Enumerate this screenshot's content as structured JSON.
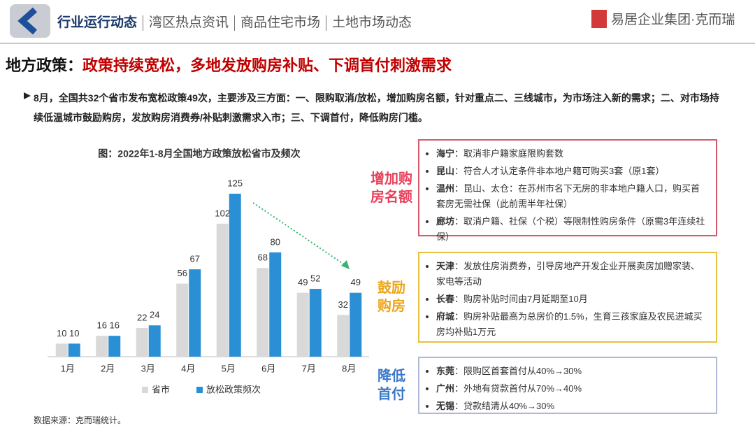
{
  "header": {
    "nav": [
      "行业运行动态",
      "湾区热点资讯",
      "商品住宅市场",
      "土地市场动态"
    ],
    "logo": "易居企业集团·克而瑞"
  },
  "headline": {
    "label": "地方政策：",
    "text": "政策持续宽松，多地发放购房补贴、下调首付刺激需求"
  },
  "summary": "8月，全国共32个省市发布宽松政策49次，主要涉及三方面：一、限购取消/放松，增加购房名额，针对重点二、三线城市，为市场注入新的需求；二、对市场持续低温城市鼓励购房，发放购房消费券/补贴刺激需求入市；三、下调首付，降低购房门槛。",
  "chart_data": {
    "type": "bar",
    "title": "图：2022年1-8月全国地方政策放松省市及频次",
    "categories": [
      "1月",
      "2月",
      "3月",
      "4月",
      "5月",
      "6月",
      "7月",
      "8月"
    ],
    "series": [
      {
        "name": "省市",
        "color": "#d9d9d9",
        "values": [
          10,
          16,
          22,
          56,
          102,
          68,
          49,
          32
        ]
      },
      {
        "name": "放松政策频次",
        "color": "#2a8fd4",
        "values": [
          10,
          16,
          24,
          67,
          125,
          80,
          52,
          49
        ]
      }
    ],
    "ylim": [
      0,
      140
    ],
    "grid": false,
    "legend": "bottom"
  },
  "panels": [
    {
      "title": [
        "增加购",
        "房名额"
      ],
      "color": "#e8405a",
      "border": "#d65a6a",
      "items": [
        {
          "city": "海宁",
          "text": "：取消非户籍家庭限购套数"
        },
        {
          "city": "昆山",
          "text": "：符合人才认定条件非本地户籍可购买3套（原1套）"
        },
        {
          "city": "温州",
          "text": "：昆山、太仓：在苏州市名下无房的非本地户籍人口，购买首套房无需社保（此前需半年社保）"
        },
        {
          "city": "廊坊",
          "text": "：取消户籍、社保（个税）等限制性购房条件（原需3年连续社保）"
        }
      ]
    },
    {
      "title": [
        "鼓励",
        "购房"
      ],
      "color": "#eba619",
      "border": "#e8c040",
      "items": [
        {
          "city": "天津",
          "text": "：发放住房消费券，引导房地产开发企业开展卖房加赠家装、家电等活动"
        },
        {
          "city": "长春",
          "text": "：购房补贴时间由7月延期至10月"
        },
        {
          "city": "府城",
          "text": "：购房补贴最高为总房价的1.5%，生育三孩家庭及农民进城买房均补贴1万元"
        }
      ]
    },
    {
      "title": [
        "降低",
        "首付"
      ],
      "color": "#3a78c8",
      "border": "#b0b8d8",
      "items": [
        {
          "city": "东莞",
          "text": "：限购区首套首付从40%→30%"
        },
        {
          "city": "广州",
          "text": "：外地有贷款首付从70%→40%"
        },
        {
          "city": "无锡",
          "text": "：贷款结清从40%→30%"
        }
      ]
    }
  ],
  "source": "数据来源：克而瑞统计。"
}
